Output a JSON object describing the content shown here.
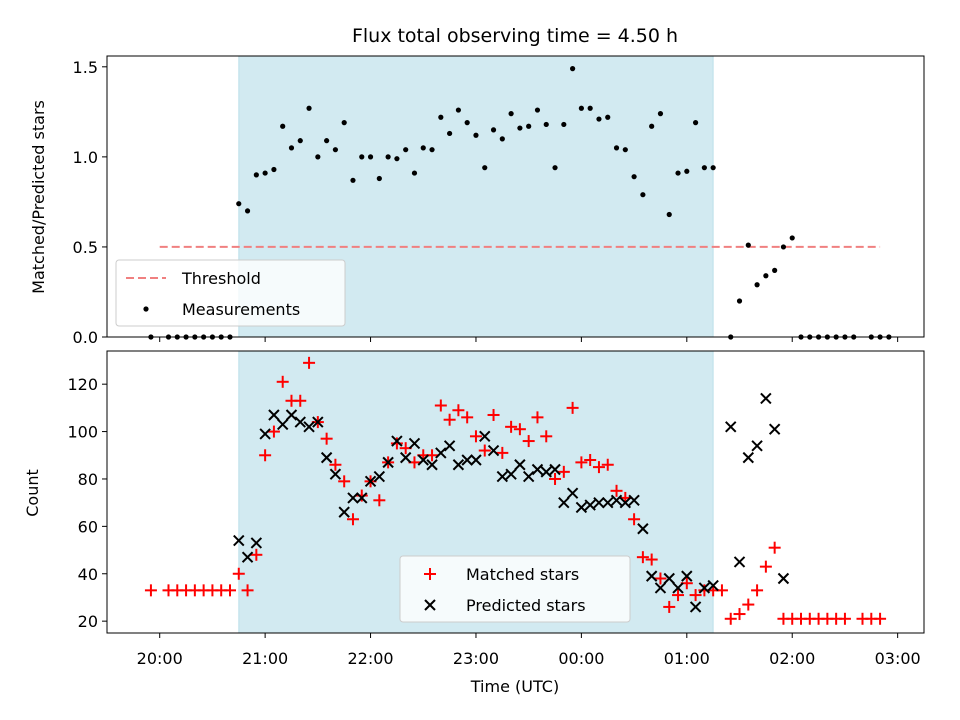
{
  "title": "Flux total observing time = 4.50 h",
  "shaded_span": [
    "20:45",
    "01:15"
  ],
  "chart_data": [
    {
      "type": "scatter",
      "ylabel": "Matched/Predicted stars",
      "ylim": [
        0,
        1.56
      ],
      "yticks": [
        0.0,
        0.5,
        1.0,
        1.5
      ],
      "ytick_labels": [
        "0.0",
        "0.5",
        "1.0",
        "1.5"
      ],
      "legend": "lower-left",
      "threshold": {
        "name": "Threshold",
        "value": 0.5,
        "x_range": [
          "20:00",
          "02:50"
        ],
        "color": "#f08080"
      },
      "series": [
        {
          "name": "Measurements",
          "color": "#000000",
          "points": [
            [
              "19:55",
              0
            ],
            [
              "20:05",
              0
            ],
            [
              "20:10",
              0
            ],
            [
              "20:15",
              0
            ],
            [
              "20:20",
              0
            ],
            [
              "20:25",
              0
            ],
            [
              "20:30",
              0
            ],
            [
              "20:35",
              0
            ],
            [
              "20:40",
              0
            ],
            [
              "20:45",
              0.74
            ],
            [
              "20:50",
              0.7
            ],
            [
              "20:55",
              0.9
            ],
            [
              "21:00",
              0.91
            ],
            [
              "21:05",
              0.93
            ],
            [
              "21:10",
              1.17
            ],
            [
              "21:15",
              1.05
            ],
            [
              "21:20",
              1.09
            ],
            [
              "21:25",
              1.27
            ],
            [
              "21:30",
              1.0
            ],
            [
              "21:35",
              1.09
            ],
            [
              "21:40",
              1.04
            ],
            [
              "21:45",
              1.19
            ],
            [
              "21:50",
              0.87
            ],
            [
              "21:55",
              1.0
            ],
            [
              "22:00",
              1.0
            ],
            [
              "22:05",
              0.88
            ],
            [
              "22:10",
              1.0
            ],
            [
              "22:15",
              0.99
            ],
            [
              "22:20",
              1.04
            ],
            [
              "22:25",
              0.91
            ],
            [
              "22:30",
              1.05
            ],
            [
              "22:35",
              1.04
            ],
            [
              "22:40",
              1.22
            ],
            [
              "22:45",
              1.13
            ],
            [
              "22:50",
              1.26
            ],
            [
              "22:55",
              1.19
            ],
            [
              "23:00",
              1.12
            ],
            [
              "23:05",
              0.94
            ],
            [
              "23:10",
              1.15
            ],
            [
              "23:15",
              1.1
            ],
            [
              "23:20",
              1.24
            ],
            [
              "23:25",
              1.16
            ],
            [
              "23:30",
              1.17
            ],
            [
              "23:35",
              1.26
            ],
            [
              "23:40",
              1.18
            ],
            [
              "23:45",
              0.94
            ],
            [
              "23:50",
              1.18
            ],
            [
              "23:55",
              1.49
            ],
            [
              "00:00",
              1.27
            ],
            [
              "00:05",
              1.27
            ],
            [
              "00:10",
              1.21
            ],
            [
              "00:15",
              1.22
            ],
            [
              "00:20",
              1.05
            ],
            [
              "00:25",
              1.04
            ],
            [
              "00:30",
              0.89
            ],
            [
              "00:35",
              0.79
            ],
            [
              "00:40",
              1.17
            ],
            [
              "00:45",
              1.24
            ],
            [
              "00:50",
              0.68
            ],
            [
              "00:55",
              0.91
            ],
            [
              "01:00",
              0.92
            ],
            [
              "01:05",
              1.19
            ],
            [
              "01:10",
              0.94
            ],
            [
              "01:15",
              0.94
            ],
            [
              "01:25",
              0
            ],
            [
              "01:30",
              0.2
            ],
            [
              "01:35",
              0.51
            ],
            [
              "01:40",
              0.29
            ],
            [
              "01:45",
              0.34
            ],
            [
              "01:50",
              0.37
            ],
            [
              "01:55",
              0.5
            ],
            [
              "02:00",
              0.55
            ],
            [
              "02:05",
              0
            ],
            [
              "02:10",
              0
            ],
            [
              "02:15",
              0
            ],
            [
              "02:20",
              0
            ],
            [
              "02:25",
              0
            ],
            [
              "02:30",
              0
            ],
            [
              "02:35",
              0
            ],
            [
              "02:45",
              0
            ],
            [
              "02:50",
              0
            ],
            [
              "02:55",
              0
            ]
          ]
        }
      ]
    },
    {
      "type": "scatter",
      "xlabel": "Time (UTC)",
      "ylabel": "Count",
      "xlim": [
        "19:30",
        "03:15"
      ],
      "xticks": [
        "20:00",
        "21:00",
        "22:00",
        "23:00",
        "00:00",
        "01:00",
        "02:00",
        "03:00"
      ],
      "ylim": [
        15,
        134
      ],
      "yticks": [
        20,
        40,
        60,
        80,
        100,
        120
      ],
      "legend": "lower-center",
      "series": [
        {
          "name": "Matched stars",
          "color": "#ff0000",
          "marker": "plus",
          "points": [
            [
              "19:55",
              33
            ],
            [
              "20:05",
              33
            ],
            [
              "20:10",
              33
            ],
            [
              "20:15",
              33
            ],
            [
              "20:20",
              33
            ],
            [
              "20:25",
              33
            ],
            [
              "20:30",
              33
            ],
            [
              "20:35",
              33
            ],
            [
              "20:40",
              33
            ],
            [
              "20:45",
              40
            ],
            [
              "20:50",
              33
            ],
            [
              "20:55",
              48
            ],
            [
              "21:00",
              90
            ],
            [
              "21:05",
              100
            ],
            [
              "21:10",
              121
            ],
            [
              "21:15",
              113
            ],
            [
              "21:20",
              113
            ],
            [
              "21:25",
              129
            ],
            [
              "21:30",
              104
            ],
            [
              "21:35",
              97
            ],
            [
              "21:40",
              86
            ],
            [
              "21:45",
              79
            ],
            [
              "21:50",
              63
            ],
            [
              "21:55",
              73
            ],
            [
              "22:00",
              79
            ],
            [
              "22:05",
              71
            ],
            [
              "22:10",
              87
            ],
            [
              "22:15",
              95
            ],
            [
              "22:20",
              93
            ],
            [
              "22:25",
              87
            ],
            [
              "22:30",
              90
            ],
            [
              "22:35",
              90
            ],
            [
              "22:40",
              111
            ],
            [
              "22:45",
              105
            ],
            [
              "22:50",
              109
            ],
            [
              "22:55",
              106
            ],
            [
              "23:00",
              98
            ],
            [
              "23:05",
              92
            ],
            [
              "23:10",
              107
            ],
            [
              "23:15",
              91
            ],
            [
              "23:20",
              102
            ],
            [
              "23:25",
              101
            ],
            [
              "23:30",
              96
            ],
            [
              "23:35",
              106
            ],
            [
              "23:40",
              98
            ],
            [
              "23:45",
              80
            ],
            [
              "23:50",
              83
            ],
            [
              "23:55",
              110
            ],
            [
              "00:00",
              87
            ],
            [
              "00:05",
              88
            ],
            [
              "00:10",
              85
            ],
            [
              "00:15",
              86
            ],
            [
              "00:20",
              75
            ],
            [
              "00:25",
              72
            ],
            [
              "00:30",
              63
            ],
            [
              "00:35",
              47
            ],
            [
              "00:40",
              46
            ],
            [
              "00:45",
              38
            ],
            [
              "00:50",
              26
            ],
            [
              "00:55",
              31
            ],
            [
              "01:00",
              36
            ],
            [
              "01:05",
              31
            ],
            [
              "01:10",
              33
            ],
            [
              "01:15",
              33
            ],
            [
              "01:20",
              33
            ],
            [
              "01:25",
              21
            ],
            [
              "01:30",
              23
            ],
            [
              "01:35",
              27
            ],
            [
              "01:40",
              33
            ],
            [
              "01:45",
              43
            ],
            [
              "01:50",
              51
            ],
            [
              "01:55",
              21
            ],
            [
              "02:00",
              21
            ],
            [
              "02:05",
              21
            ],
            [
              "02:10",
              21
            ],
            [
              "02:15",
              21
            ],
            [
              "02:20",
              21
            ],
            [
              "02:25",
              21
            ],
            [
              "02:30",
              21
            ],
            [
              "02:40",
              21
            ],
            [
              "02:45",
              21
            ],
            [
              "02:50",
              21
            ]
          ]
        },
        {
          "name": "Predicted stars",
          "color": "#000000",
          "marker": "x",
          "points": [
            [
              "20:45",
              54
            ],
            [
              "20:50",
              47
            ],
            [
              "20:55",
              53
            ],
            [
              "21:00",
              99
            ],
            [
              "21:05",
              107
            ],
            [
              "21:10",
              103
            ],
            [
              "21:15",
              107
            ],
            [
              "21:20",
              104
            ],
            [
              "21:25",
              102
            ],
            [
              "21:30",
              104
            ],
            [
              "21:35",
              89
            ],
            [
              "21:40",
              82
            ],
            [
              "21:45",
              66
            ],
            [
              "21:50",
              72
            ],
            [
              "21:55",
              72
            ],
            [
              "22:00",
              79
            ],
            [
              "22:05",
              81
            ],
            [
              "22:10",
              87
            ],
            [
              "22:15",
              96
            ],
            [
              "22:20",
              89
            ],
            [
              "22:25",
              95
            ],
            [
              "22:30",
              88
            ],
            [
              "22:35",
              86
            ],
            [
              "22:40",
              91
            ],
            [
              "22:45",
              94
            ],
            [
              "22:50",
              86
            ],
            [
              "22:55",
              88
            ],
            [
              "23:00",
              88
            ],
            [
              "23:05",
              98
            ],
            [
              "23:10",
              92
            ],
            [
              "23:15",
              81
            ],
            [
              "23:20",
              82
            ],
            [
              "23:25",
              86
            ],
            [
              "23:30",
              81
            ],
            [
              "23:35",
              84
            ],
            [
              "23:40",
              83
            ],
            [
              "23:45",
              84
            ],
            [
              "23:50",
              70
            ],
            [
              "23:55",
              74
            ],
            [
              "00:00",
              68
            ],
            [
              "00:05",
              69
            ],
            [
              "00:10",
              70
            ],
            [
              "00:15",
              70
            ],
            [
              "00:20",
              71
            ],
            [
              "00:25",
              70
            ],
            [
              "00:30",
              71
            ],
            [
              "00:35",
              59
            ],
            [
              "00:40",
              39
            ],
            [
              "00:45",
              34
            ],
            [
              "00:50",
              38
            ],
            [
              "00:55",
              34
            ],
            [
              "01:00",
              39
            ],
            [
              "01:05",
              26
            ],
            [
              "01:10",
              34
            ],
            [
              "01:15",
              35
            ],
            [
              "01:25",
              102
            ],
            [
              "01:30",
              45
            ],
            [
              "01:35",
              89
            ],
            [
              "01:40",
              94
            ],
            [
              "01:45",
              114
            ],
            [
              "01:50",
              101
            ],
            [
              "01:55",
              38
            ]
          ]
        }
      ]
    }
  ]
}
